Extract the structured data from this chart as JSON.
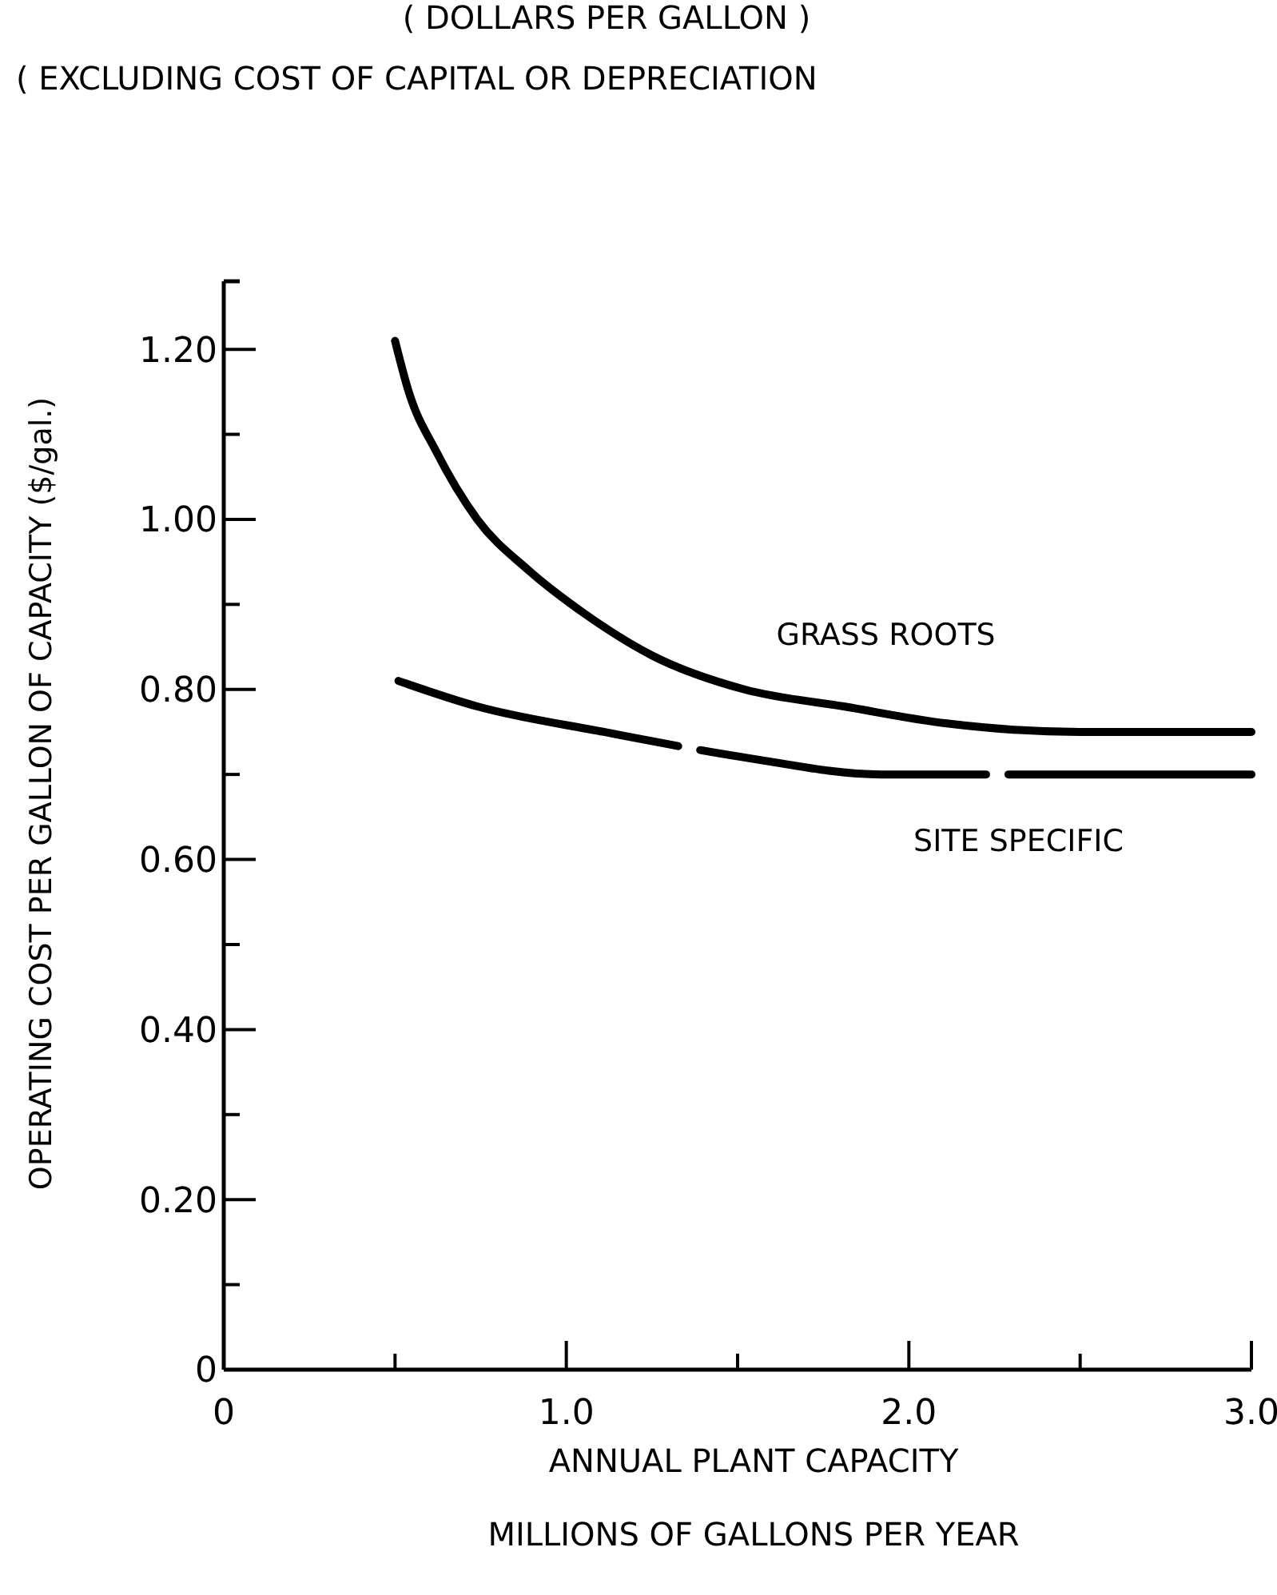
{
  "chart_data": {
    "type": "line",
    "title": "( DOLLARS PER GALLON )",
    "subtitle": "( EXCLUDING COST OF CAPITAL OR DEPRECIATION",
    "xlabel": "ANNUAL PLANT CAPACITY\nMILLIONS OF GALLONS PER YEAR",
    "ylabel": "OPERATING COST PER GALLON OF CAPACITY ($/gal.)",
    "xlim": [
      0,
      3.0
    ],
    "ylim": [
      0,
      1.28
    ],
    "xticks": [
      0,
      {
        "value": 0.5,
        "label": null
      },
      {
        "value": 1.0,
        "label": "1.0"
      },
      {
        "value": 1.5,
        "label": null
      },
      {
        "value": 2.0,
        "label": "2.0"
      },
      {
        "value": 2.5,
        "label": null
      },
      {
        "value": 3.0,
        "label": "3.0"
      }
    ],
    "yticks": [
      0,
      {
        "value": 0.1,
        "label": null
      },
      {
        "value": 0.2,
        "label": "0.20"
      },
      {
        "value": 0.3,
        "label": null
      },
      {
        "value": 0.4,
        "label": "0.40"
      },
      {
        "value": 0.5,
        "label": null
      },
      {
        "value": 0.6,
        "label": "0.60"
      },
      {
        "value": 0.7,
        "label": null
      },
      {
        "value": 0.8,
        "label": "0.80"
      },
      {
        "value": 0.9,
        "label": null
      },
      {
        "value": 1.0,
        "label": "1.00"
      },
      {
        "value": 1.1,
        "label": null
      },
      {
        "value": 1.2,
        "label": "1.20"
      }
    ],
    "grid": false,
    "legend": false,
    "marker": "none",
    "series": [
      {
        "name": "GRASS ROOTS",
        "color": "#000000",
        "line_style": "solid",
        "x": [
          0.5,
          0.54,
          0.62,
          0.74,
          0.89,
          1.05,
          1.25,
          1.52,
          1.81,
          2.11,
          2.5,
          3.0
        ],
        "values": [
          1.21,
          1.15,
          1.08,
          1.0,
          0.94,
          0.89,
          0.84,
          0.8,
          0.78,
          0.76,
          0.75,
          0.75
        ]
      },
      {
        "name": "SITE SPECIFIC",
        "color": "#000000",
        "line_style": "dashed",
        "x": [
          0.51,
          0.74,
          1.11,
          1.52,
          1.92,
          2.5,
          3.0
        ],
        "values": [
          0.81,
          0.78,
          0.75,
          0.72,
          0.7,
          0.7,
          0.7
        ]
      }
    ]
  }
}
